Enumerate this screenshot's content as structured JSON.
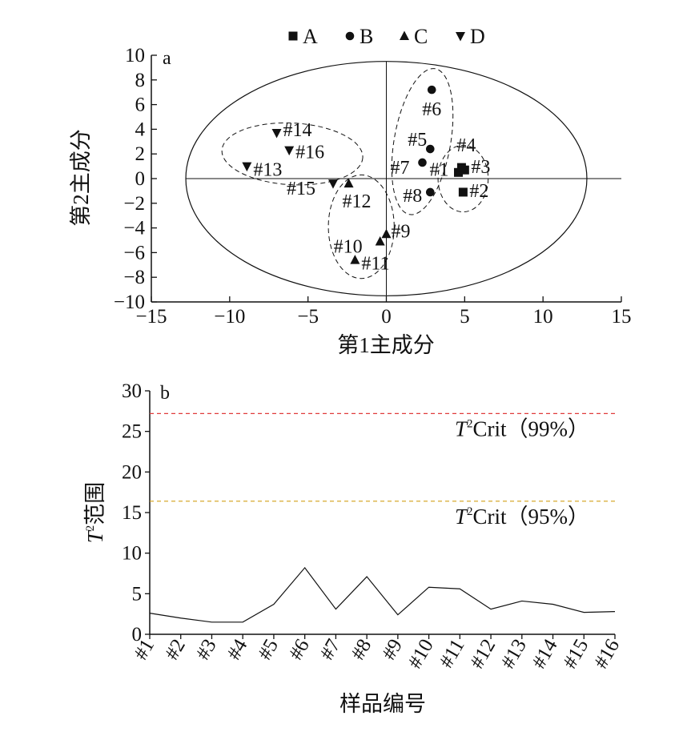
{
  "chart_data": [
    {
      "type": "scatter",
      "panel_label": "a",
      "xlabel": "第1主成分",
      "ylabel": "第2主成分",
      "xlim": [
        -15,
        15
      ],
      "ylim": [
        -10,
        10
      ],
      "xticks": [
        -15,
        -10,
        -5,
        0,
        5,
        10,
        15
      ],
      "yticks": [
        -10,
        -8,
        -6,
        -4,
        -2,
        0,
        2,
        4,
        6,
        8,
        10
      ],
      "legend": {
        "position": "top",
        "entries": [
          "A",
          "B",
          "C",
          "D"
        ]
      },
      "series": [
        {
          "name": "A",
          "marker": "square",
          "points": [
            {
              "label": "#1",
              "x": 4.6,
              "y": 0.5
            },
            {
              "label": "#2",
              "x": 4.9,
              "y": -1.1
            },
            {
              "label": "#3",
              "x": 5.0,
              "y": 0.7
            },
            {
              "label": "#4",
              "x": 4.8,
              "y": 0.9
            }
          ]
        },
        {
          "name": "B",
          "marker": "circle",
          "points": [
            {
              "label": "#5",
              "x": 2.8,
              "y": 2.4
            },
            {
              "label": "#6",
              "x": 2.9,
              "y": 7.2
            },
            {
              "label": "#7",
              "x": 2.3,
              "y": 1.3
            },
            {
              "label": "#8",
              "x": 2.8,
              "y": -1.1
            }
          ]
        },
        {
          "name": "C",
          "marker": "triangle-up",
          "points": [
            {
              "label": "#9",
              "x": 0.0,
              "y": -4.5
            },
            {
              "label": "#10",
              "x": -0.4,
              "y": -5.1
            },
            {
              "label": "#11",
              "x": -2.0,
              "y": -6.6
            },
            {
              "label": "#12",
              "x": -2.4,
              "y": -0.4
            }
          ]
        },
        {
          "name": "D",
          "marker": "triangle-down",
          "points": [
            {
              "label": "#13",
              "x": -8.9,
              "y": 1.0
            },
            {
              "label": "#14",
              "x": -7.0,
              "y": 3.7
            },
            {
              "label": "#15",
              "x": -3.4,
              "y": -0.4
            },
            {
              "label": "#16",
              "x": -6.2,
              "y": 2.3
            }
          ]
        }
      ],
      "confidence_ellipse": {
        "cx": 0,
        "cy": 0,
        "rx": 12.8,
        "ry": 9.5
      },
      "group_ellipses": [
        {
          "group": "A",
          "cx": 4.9,
          "cy": 0,
          "rx": 1.6,
          "ry": 2.7,
          "rotation": 0
        },
        {
          "group": "B",
          "cx": 2.3,
          "cy": 3.0,
          "rx": 1.8,
          "ry": 6.0,
          "rotation": 10
        },
        {
          "group": "C",
          "cx": -1.6,
          "cy": -3.9,
          "rx": 2.1,
          "ry": 4.2,
          "rotation": 0
        },
        {
          "group": "D",
          "cx": -6.0,
          "cy": 2.0,
          "rx": 4.5,
          "ry": 2.5,
          "rotation": 3
        }
      ]
    },
    {
      "type": "line",
      "panel_label": "b",
      "xlabel": "样品编号",
      "ylabel_italic": "T",
      "ylabel_sup": "2",
      "ylabel_rest": "范围",
      "ylim": [
        0,
        30
      ],
      "yticks": [
        0,
        5,
        10,
        15,
        20,
        25,
        30
      ],
      "categories": [
        "#1",
        "#2",
        "#3",
        "#4",
        "#5",
        "#6",
        "#7",
        "#8",
        "#9",
        "#10",
        "#11",
        "#12",
        "#13",
        "#14",
        "#15",
        "#16"
      ],
      "values": [
        2.6,
        2.0,
        1.5,
        1.5,
        3.7,
        8.2,
        3.1,
        7.1,
        2.4,
        5.8,
        5.6,
        3.1,
        4.1,
        3.7,
        2.7,
        2.8
      ],
      "thresholds": [
        {
          "label_italic": "T",
          "label_sup": "2",
          "label_rest": "Crit（99%）",
          "value": 27.2,
          "color": "#e03c3c"
        },
        {
          "label_italic": "T",
          "label_sup": "2",
          "label_rest": "Crit（95%）",
          "value": 16.4,
          "color": "#d4a017"
        }
      ]
    }
  ]
}
